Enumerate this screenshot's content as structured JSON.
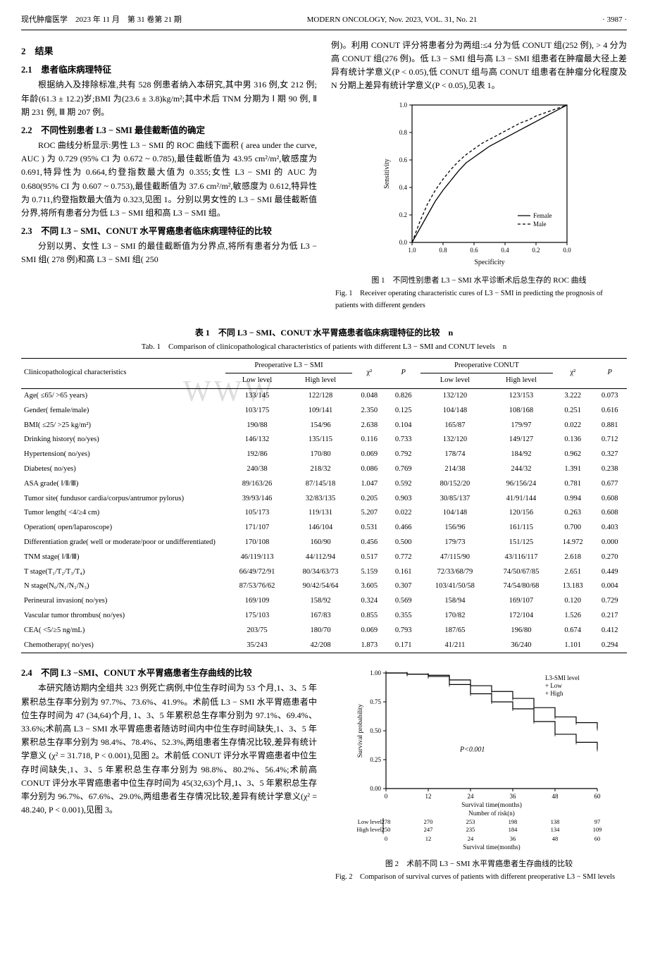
{
  "header": {
    "left_cn": "现代肿瘤医学　2023 年 11 月　第 31 卷第 21 期",
    "center_en": "MODERN ONCOLOGY, Nov. 2023, VOL. 31, No. 21",
    "page": "· 3987 ·"
  },
  "sections": {
    "s2": "2　结果",
    "s21": "2.1　患者临床病理特征",
    "s21_body": "根据纳入及排除标准,共有 528 例患者纳入本研究,其中男 316 例,女 212 例;年龄(61.3 ± 12.2)岁;BMI 为(23.6 ± 3.8)kg/m²;其中术后 TNM 分期为 Ⅰ 期 90 例, Ⅱ 期 231 例, Ⅲ 期 207 例。",
    "s22": "2.2　不同性别患者 L3 − SMI 最佳截断值的确定",
    "s22_body": "ROC 曲线分析显示:男性 L3 − SMI 的 ROC 曲线下面积 ( area under the curve, AUC ) 为 0.729 (95% CI 为 0.672 ~ 0.785),最佳截断值为 43.95 cm²/m²,敏感度为 0.691,特异性为 0.664,约登指数最大值为 0.355;女性 L3 − SMI 的 AUC 为 0.680(95% CI 为 0.607 ~ 0.753),最佳截断值为 37.6 cm²/m²,敏感度为 0.612,特异性为 0.711,约登指数最大值为 0.323,见图 1。分别以男女性的 L3 − SMI 最佳截断值分界,将所有患者分为低 L3 − SMI 组和高 L3 − SMI 组。",
    "s23": "2.3　不同 L3 − SMI、CONUT 水平胃癌患者临床病理特征的比较",
    "s23_body": "分别以男、女性 L3 − SMI 的最佳截断值为分界点,将所有患者分为低 L3 − SMI 组( 278 例)和高 L3 − SMI 组( 250",
    "rcol1": "例)。利用 CONUT 评分将患者分为两组:≤4 分为低 CONUT 组(252 例), > 4 分为高 CONUT 组(276 例)。低 L3 − SMI 组与高 L3 − SMI 组患者在肿瘤最大径上差异有统计学意义(P < 0.05),低 CONUT 组与高 CONUT 组患者在肿瘤分化程度及 N 分期上差异有统计学意义(P < 0.05),见表 1。",
    "s24": "2.4　不同 L3 −SMI、CONUT 水平胃癌患者生存曲线的比较",
    "s24_body": "本研究随访期内全组共 323 例死亡病例,中位生存时间为 53 个月,1、3、5 年累积总生存率分别为 97.7%、73.6%、41.9%。术前低 L3 − SMI 水平胃癌患者中位生存时间为 47 (34,64)个月, 1、3、5 年累积总生存率分别为 97.1%、69.4%、33.6%;术前高 L3 − SMI 水平胃癌患者随访时间内中位生存时间缺失,1、3、5 年累积总生存率分别为 98.4%、78.4%、52.3%,两组患者生存情况比较,差异有统计学意义 (χ² = 31.718, P < 0.001),见图 2。术前低 CONUT 评分水平胃癌患者中位生存时间缺失,1、3、5 年累积总生存率分别为 98.8%、80.2%、56.4%;术前高 CONUT 评分水平胃癌患者中位生存时间为 45(32,63)个月,1、3、5 年累积总生存率分别为 96.7%、67.6%、29.0%,两组患者生存情况比较,差异有统计学意义(χ² = 48.240, P < 0.001),见图 3。"
  },
  "fig1": {
    "caption_cn": "图 1　不同性别患者 L3 − SMI 水平诊断术后总生存的 ROC 曲线",
    "caption_en": "Fig. 1　Receiver operating characteristic cures of L3 − SMI in predicting the prognosis of patients with different genders",
    "type": "roc",
    "xlabel": "Specificity",
    "ylabel": "Sensitivity",
    "xlim": [
      1.0,
      0.0
    ],
    "ylim": [
      0.0,
      1.0
    ],
    "xticks": [
      1.0,
      0.8,
      0.6,
      0.4,
      0.2,
      0
    ],
    "yticks": [
      0.0,
      0.2,
      0.4,
      0.6,
      0.8,
      1.0
    ],
    "border_color": "#000000",
    "line_color": "#000000",
    "background": "#ffffff",
    "legend": [
      "— Female",
      "-- Male"
    ],
    "female_points": [
      [
        1.0,
        0.0
      ],
      [
        0.95,
        0.1
      ],
      [
        0.9,
        0.2
      ],
      [
        0.85,
        0.3
      ],
      [
        0.8,
        0.38
      ],
      [
        0.75,
        0.45
      ],
      [
        0.7,
        0.52
      ],
      [
        0.65,
        0.58
      ],
      [
        0.6,
        0.62
      ],
      [
        0.55,
        0.66
      ],
      [
        0.5,
        0.7
      ],
      [
        0.45,
        0.73
      ],
      [
        0.4,
        0.76
      ],
      [
        0.35,
        0.79
      ],
      [
        0.3,
        0.82
      ],
      [
        0.25,
        0.85
      ],
      [
        0.2,
        0.88
      ],
      [
        0.15,
        0.91
      ],
      [
        0.1,
        0.94
      ],
      [
        0.05,
        0.97
      ],
      [
        0.0,
        1.0
      ]
    ],
    "male_points": [
      [
        1.0,
        0.0
      ],
      [
        0.95,
        0.15
      ],
      [
        0.9,
        0.28
      ],
      [
        0.85,
        0.38
      ],
      [
        0.8,
        0.46
      ],
      [
        0.75,
        0.53
      ],
      [
        0.7,
        0.59
      ],
      [
        0.65,
        0.64
      ],
      [
        0.6,
        0.68
      ],
      [
        0.55,
        0.72
      ],
      [
        0.5,
        0.75
      ],
      [
        0.45,
        0.78
      ],
      [
        0.4,
        0.81
      ],
      [
        0.35,
        0.84
      ],
      [
        0.3,
        0.87
      ],
      [
        0.25,
        0.89
      ],
      [
        0.2,
        0.92
      ],
      [
        0.15,
        0.94
      ],
      [
        0.1,
        0.96
      ],
      [
        0.05,
        0.98
      ],
      [
        0.0,
        1.0
      ]
    ]
  },
  "table1": {
    "caption_cn": "表 1　不同 L3 − SMI、CONUT 水平胃癌患者临床病理特征的比较　n",
    "caption_en": "Tab. 1　Comparison of clinicopathological characteristics of patients with different L3 − SMI and CONUT levels　n",
    "group_headers": [
      "Clinicopathological characteristics",
      "Preoperative L3 − SMI",
      "χ²",
      "P",
      "Preoperative CONUT",
      "χ²",
      "P"
    ],
    "sub_headers_l3": [
      "Low level",
      "High level"
    ],
    "sub_headers_co": [
      "Low level",
      "High level"
    ],
    "rows": [
      [
        "Age( ≤65/ >65 years)",
        "133/145",
        "122/128",
        "0.048",
        "0.826",
        "132/120",
        "123/153",
        "3.222",
        "0.073"
      ],
      [
        "Gender( female/male)",
        "103/175",
        "109/141",
        "2.350",
        "0.125",
        "104/148",
        "108/168",
        "0.251",
        "0.616"
      ],
      [
        "BMI( ≤25/ >25 kg/m²)",
        "190/88",
        "154/96",
        "2.638",
        "0.104",
        "165/87",
        "179/97",
        "0.022",
        "0.881"
      ],
      [
        "Drinking history( no/yes)",
        "146/132",
        "135/115",
        "0.116",
        "0.733",
        "132/120",
        "149/127",
        "0.136",
        "0.712"
      ],
      [
        "Hypertension( no/yes)",
        "192/86",
        "170/80",
        "0.069",
        "0.792",
        "178/74",
        "184/92",
        "0.962",
        "0.327"
      ],
      [
        "Diabetes( no/yes)",
        "240/38",
        "218/32",
        "0.086",
        "0.769",
        "214/38",
        "244/32",
        "1.391",
        "0.238"
      ],
      [
        "ASA grade( Ⅰ/Ⅱ/Ⅲ)",
        "89/163/26",
        "87/145/18",
        "1.047",
        "0.592",
        "80/152/20",
        "96/156/24",
        "0.781",
        "0.677"
      ],
      [
        "Tumor site( fundusor cardia/corpus/antrumor pylorus)",
        "39/93/146",
        "32/83/135",
        "0.205",
        "0.903",
        "30/85/137",
        "41/91/144",
        "0.994",
        "0.608"
      ],
      [
        "Tumor length( <4/≥4 cm)",
        "105/173",
        "119/131",
        "5.207",
        "0.022",
        "104/148",
        "120/156",
        "0.263",
        "0.608"
      ],
      [
        "Operation( open/laparoscope)",
        "171/107",
        "146/104",
        "0.531",
        "0.466",
        "156/96",
        "161/115",
        "0.700",
        "0.403"
      ],
      [
        "Differentiation grade( well or moderate/poor or undifferentiated)",
        "170/108",
        "160/90",
        "0.456",
        "0.500",
        "179/73",
        "151/125",
        "14.972",
        "0.000"
      ],
      [
        "TNM stage( Ⅰ/Ⅱ/Ⅲ)",
        "46/119/113",
        "44/112/94",
        "0.517",
        "0.772",
        "47/115/90",
        "43/116/117",
        "2.618",
        "0.270"
      ],
      [
        "T stage(T₁/T₂/T₃/T₄)",
        "66/49/72/91",
        "80/34/63/73",
        "5.159",
        "0.161",
        "72/33/68/79",
        "74/50/67/85",
        "2.651",
        "0.449"
      ],
      [
        "N stage(N₀/N₁/N₂/N₃)",
        "87/53/76/62",
        "90/42/54/64",
        "3.605",
        "0.307",
        "103/41/50/58",
        "74/54/80/68",
        "13.183",
        "0.004"
      ],
      [
        "Perineural invasion( no/yes)",
        "169/109",
        "158/92",
        "0.324",
        "0.569",
        "158/94",
        "169/107",
        "0.120",
        "0.729"
      ],
      [
        "Vascular tumor thrombus( no/yes)",
        "175/103",
        "167/83",
        "0.855",
        "0.355",
        "170/82",
        "172/104",
        "1.526",
        "0.217"
      ],
      [
        "CEA( <5/≥5 ng/mL)",
        "203/75",
        "180/70",
        "0.069",
        "0.793",
        "187/65",
        "196/80",
        "0.674",
        "0.412"
      ],
      [
        "Chemotherapy( no/yes)",
        "35/243",
        "42/208",
        "1.873",
        "0.171",
        "41/211",
        "36/240",
        "1.101",
        "0.294"
      ]
    ]
  },
  "fig2": {
    "caption_cn": "图 2　术前不同 L3 − SMI 水平胃癌患者生存曲线的比较",
    "caption_en": "Fig. 2　Comparison of survival curves of patients with different preoperative L3 − SMI levels",
    "type": "km",
    "xlabel": "Survival time(months)",
    "ylabel": "Survival probability",
    "xlim": [
      0,
      60
    ],
    "ylim": [
      0,
      1.0
    ],
    "xticks": [
      0,
      12,
      24,
      36,
      48,
      60
    ],
    "yticks": [
      0.0,
      0.25,
      0.5,
      0.75,
      1.0
    ],
    "legend_title": "L3-SMI level",
    "legend": [
      "+ Low",
      "+ High"
    ],
    "p_label": "P<0.001",
    "low_line": [
      [
        0,
        1.0
      ],
      [
        6,
        0.99
      ],
      [
        12,
        0.97
      ],
      [
        18,
        0.9
      ],
      [
        24,
        0.82
      ],
      [
        30,
        0.75
      ],
      [
        36,
        0.69
      ],
      [
        42,
        0.58
      ],
      [
        48,
        0.47
      ],
      [
        54,
        0.4
      ],
      [
        60,
        0.34
      ]
    ],
    "high_line": [
      [
        0,
        1.0
      ],
      [
        6,
        0.99
      ],
      [
        12,
        0.98
      ],
      [
        18,
        0.94
      ],
      [
        24,
        0.89
      ],
      [
        30,
        0.84
      ],
      [
        36,
        0.78
      ],
      [
        42,
        0.7
      ],
      [
        48,
        0.62
      ],
      [
        54,
        0.57
      ],
      [
        60,
        0.52
      ]
    ],
    "risk_header": "Number of risk(n)",
    "risk_low_label": "Low level",
    "risk_high_label": "High level",
    "risk_low": [
      278,
      270,
      253,
      198,
      138,
      97
    ],
    "risk_high": [
      250,
      247,
      235,
      184,
      134,
      109
    ],
    "line_color": "#000000",
    "background": "#ffffff"
  },
  "watermark": "WWW"
}
